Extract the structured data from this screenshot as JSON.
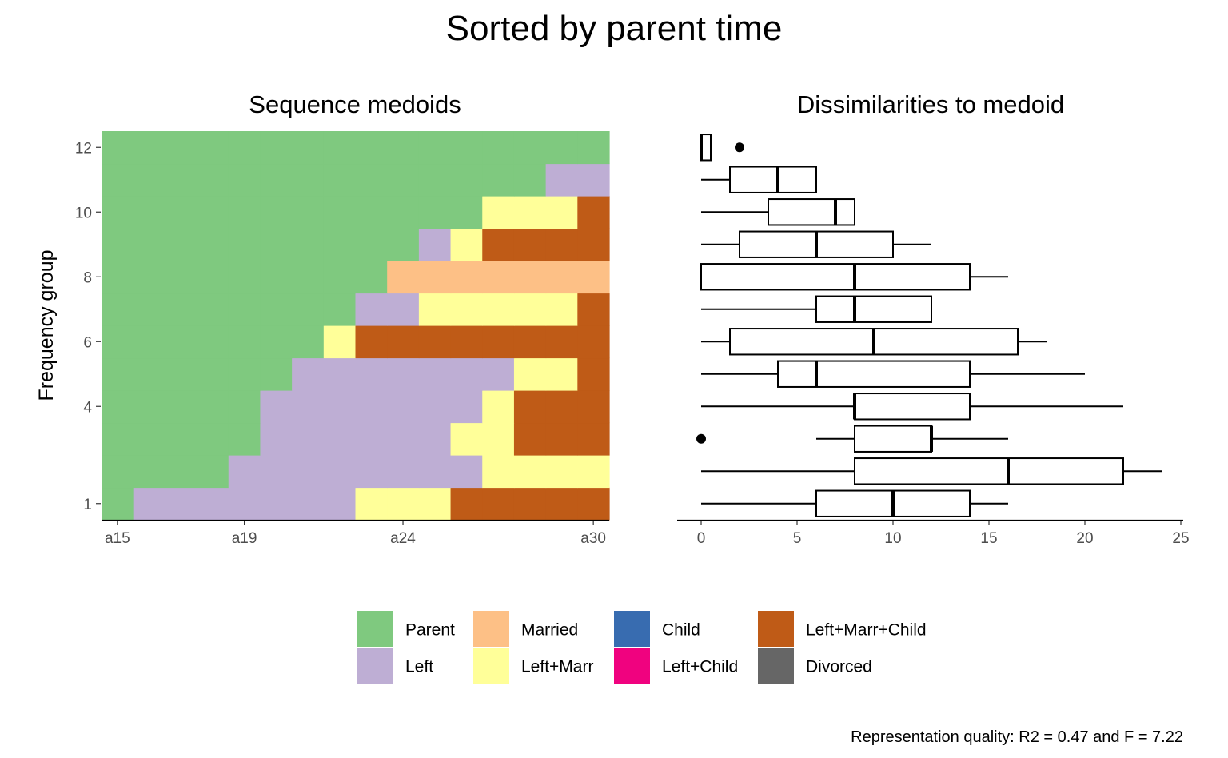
{
  "title": "Sorted by parent time",
  "caption": "Representation quality: R2 = 0.47 and F = 7.22",
  "chart_data": [
    {
      "type": "heatmap",
      "title": "Sequence medoids",
      "ylabel": "Frequency group",
      "x_tick_labels": [
        "a15",
        "a19",
        "a24",
        "a30"
      ],
      "y_ticks": [
        1,
        4,
        6,
        8,
        10,
        12
      ],
      "ages": [
        "a15",
        "a16",
        "a17",
        "a18",
        "a19",
        "a20",
        "a21",
        "a22",
        "a23",
        "a24",
        "a25",
        "a26",
        "a27",
        "a28",
        "a29",
        "a30"
      ],
      "rows": [
        {
          "group": 1,
          "y": 1,
          "states": [
            "Parent",
            "Left",
            "Left",
            "Left",
            "Left",
            "Left",
            "Left",
            "Left",
            "Left+Marr",
            "Left+Marr",
            "Left+Marr",
            "Left+Marr+Child",
            "Left+Marr+Child",
            "Left+Marr+Child",
            "Left+Marr+Child",
            "Left+Marr+Child"
          ]
        },
        {
          "group": 2,
          "y": 2,
          "states": [
            "Parent",
            "Parent",
            "Parent",
            "Parent",
            "Left",
            "Left",
            "Left",
            "Left",
            "Left",
            "Left",
            "Left",
            "Left",
            "Left+Marr",
            "Left+Marr",
            "Left+Marr",
            "Left+Marr"
          ]
        },
        {
          "group": 3,
          "y": 3,
          "states": [
            "Parent",
            "Parent",
            "Parent",
            "Parent",
            "Parent",
            "Left",
            "Left",
            "Left",
            "Left",
            "Left",
            "Left",
            "Left+Marr",
            "Left+Marr",
            "Left+Marr+Child",
            "Left+Marr+Child",
            "Left+Marr+Child"
          ]
        },
        {
          "group": 4,
          "y": 4,
          "states": [
            "Parent",
            "Parent",
            "Parent",
            "Parent",
            "Parent",
            "Left",
            "Left",
            "Left",
            "Left",
            "Left",
            "Left",
            "Left",
            "Left+Marr",
            "Left+Marr+Child",
            "Left+Marr+Child",
            "Left+Marr+Child"
          ]
        },
        {
          "group": 5,
          "y": 5,
          "states": [
            "Parent",
            "Parent",
            "Parent",
            "Parent",
            "Parent",
            "Parent",
            "Left",
            "Left",
            "Left",
            "Left",
            "Left",
            "Left",
            "Left",
            "Left+Marr",
            "Left+Marr",
            "Left+Marr+Child"
          ]
        },
        {
          "group": 6,
          "y": 6,
          "states": [
            "Parent",
            "Parent",
            "Parent",
            "Parent",
            "Parent",
            "Parent",
            "Parent",
            "Left+Marr",
            "Left+Marr+Child",
            "Left+Marr+Child",
            "Left+Marr+Child",
            "Left+Marr+Child",
            "Left+Marr+Child",
            "Left+Marr+Child",
            "Left+Marr+Child",
            "Left+Marr+Child"
          ]
        },
        {
          "group": 7,
          "y": 7,
          "states": [
            "Parent",
            "Parent",
            "Parent",
            "Parent",
            "Parent",
            "Parent",
            "Parent",
            "Parent",
            "Left",
            "Left",
            "Left+Marr",
            "Left+Marr",
            "Left+Marr",
            "Left+Marr",
            "Left+Marr",
            "Left+Marr+Child"
          ]
        },
        {
          "group": 8,
          "y": 8,
          "states": [
            "Parent",
            "Parent",
            "Parent",
            "Parent",
            "Parent",
            "Parent",
            "Parent",
            "Parent",
            "Parent",
            "Married",
            "Married",
            "Married",
            "Married",
            "Married",
            "Married",
            "Married"
          ]
        },
        {
          "group": 9,
          "y": 9,
          "states": [
            "Parent",
            "Parent",
            "Parent",
            "Parent",
            "Parent",
            "Parent",
            "Parent",
            "Parent",
            "Parent",
            "Parent",
            "Left",
            "Left+Marr",
            "Left+Marr+Child",
            "Left+Marr+Child",
            "Left+Marr+Child",
            "Left+Marr+Child"
          ]
        },
        {
          "group": 10,
          "y": 10,
          "states": [
            "Parent",
            "Parent",
            "Parent",
            "Parent",
            "Parent",
            "Parent",
            "Parent",
            "Parent",
            "Parent",
            "Parent",
            "Parent",
            "Parent",
            "Left+Marr",
            "Left+Marr",
            "Left+Marr",
            "Left+Marr+Child"
          ]
        },
        {
          "group": 11,
          "y": 11,
          "states": [
            "Parent",
            "Parent",
            "Parent",
            "Parent",
            "Parent",
            "Parent",
            "Parent",
            "Parent",
            "Parent",
            "Parent",
            "Parent",
            "Parent",
            "Parent",
            "Parent",
            "Left",
            "Left"
          ]
        },
        {
          "group": 12,
          "y": 12,
          "states": [
            "Parent",
            "Parent",
            "Parent",
            "Parent",
            "Parent",
            "Parent",
            "Parent",
            "Parent",
            "Parent",
            "Parent",
            "Parent",
            "Parent",
            "Parent",
            "Parent",
            "Parent",
            "Parent"
          ]
        }
      ]
    },
    {
      "type": "boxplot",
      "title": "Dissimilarities to medoid",
      "xlim": [
        0,
        25
      ],
      "x_ticks": [
        0,
        5,
        10,
        15,
        20,
        25
      ],
      "boxes": [
        {
          "y": 1,
          "min": 0,
          "q1": 6,
          "median": 10,
          "q3": 14,
          "max": 16,
          "outliers": []
        },
        {
          "y": 2,
          "min": 0,
          "q1": 8,
          "median": 16,
          "q3": 22,
          "max": 24,
          "outliers": []
        },
        {
          "y": 3,
          "min": 6,
          "q1": 8,
          "median": 12,
          "q3": 12,
          "max": 16,
          "outliers": [
            0
          ]
        },
        {
          "y": 4,
          "min": 0,
          "q1": 8,
          "median": 8,
          "q3": 14,
          "max": 22,
          "outliers": []
        },
        {
          "y": 5,
          "min": 0,
          "q1": 4,
          "median": 6,
          "q3": 14,
          "max": 20,
          "outliers": []
        },
        {
          "y": 6,
          "min": 0,
          "q1": 1.5,
          "median": 9,
          "q3": 16.5,
          "max": 18,
          "outliers": []
        },
        {
          "y": 7,
          "min": 0,
          "q1": 6,
          "median": 8,
          "q3": 12,
          "max": 12,
          "outliers": []
        },
        {
          "y": 8,
          "min": 0,
          "q1": 0,
          "median": 8,
          "q3": 14,
          "max": 16,
          "outliers": []
        },
        {
          "y": 9,
          "min": 0,
          "q1": 2,
          "median": 6,
          "q3": 10,
          "max": 12,
          "outliers": []
        },
        {
          "y": 10,
          "min": 0,
          "q1": 3.5,
          "median": 7,
          "q3": 8,
          "max": 8,
          "outliers": []
        },
        {
          "y": 11,
          "min": 0,
          "q1": 1.5,
          "median": 4,
          "q3": 6,
          "max": 6,
          "outliers": []
        },
        {
          "y": 12,
          "min": 0,
          "q1": 0,
          "median": 0,
          "q3": 0.5,
          "max": 0.5,
          "outliers": [
            2
          ]
        }
      ]
    }
  ],
  "legend": {
    "placement": "bottom",
    "items": [
      {
        "label": "Parent",
        "color": "#7fc97f"
      },
      {
        "label": "Left",
        "color": "#beaed4"
      },
      {
        "label": "Married",
        "color": "#fdc086"
      },
      {
        "label": "Left+Marr",
        "color": "#ffff99"
      },
      {
        "label": "Child",
        "color": "#386cb0"
      },
      {
        "label": "Left+Child",
        "color": "#f0027f"
      },
      {
        "label": "Left+Marr+Child",
        "color": "#bf5b17"
      },
      {
        "label": "Divorced",
        "color": "#666666"
      }
    ]
  }
}
